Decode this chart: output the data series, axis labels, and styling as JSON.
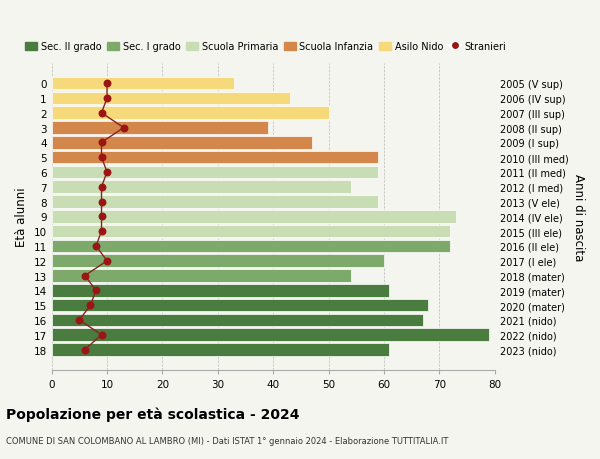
{
  "ages": [
    0,
    1,
    2,
    3,
    4,
    5,
    6,
    7,
    8,
    9,
    10,
    11,
    12,
    13,
    14,
    15,
    16,
    17,
    18
  ],
  "years": [
    "2023 (nido)",
    "2022 (nido)",
    "2021 (nido)",
    "2020 (mater)",
    "2019 (mater)",
    "2018 (mater)",
    "2017 (I ele)",
    "2016 (II ele)",
    "2015 (III ele)",
    "2014 (IV ele)",
    "2013 (V ele)",
    "2012 (I med)",
    "2011 (II med)",
    "2010 (III med)",
    "2009 (I sup)",
    "2008 (II sup)",
    "2007 (III sup)",
    "2006 (IV sup)",
    "2005 (V sup)"
  ],
  "bar_values": [
    33,
    43,
    50,
    39,
    47,
    59,
    59,
    54,
    59,
    73,
    72,
    72,
    60,
    54,
    61,
    68,
    67,
    79,
    61
  ],
  "bar_colors": [
    "#f5d97a",
    "#f5d97a",
    "#f5d97a",
    "#d4874a",
    "#d4874a",
    "#d4874a",
    "#c8ddb4",
    "#c8ddb4",
    "#c8ddb4",
    "#c8ddb4",
    "#c8ddb4",
    "#7daa6b",
    "#7daa6b",
    "#7daa6b",
    "#4a7c3f",
    "#4a7c3f",
    "#4a7c3f",
    "#4a7c3f",
    "#4a7c3f"
  ],
  "stranieri": [
    10,
    10,
    9,
    13,
    9,
    9,
    10,
    9,
    9,
    9,
    9,
    8,
    10,
    6,
    8,
    7,
    5,
    9,
    6
  ],
  "legend_labels": [
    "Sec. II grado",
    "Sec. I grado",
    "Scuola Primaria",
    "Scuola Infanzia",
    "Asilo Nido",
    "Stranieri"
  ],
  "legend_colors": [
    "#4a7c3f",
    "#7daa6b",
    "#c8ddb4",
    "#d4874a",
    "#f5d97a",
    "#9b1515"
  ],
  "ylabel": "Età alunni",
  "ylabel2": "Anni di nascita",
  "xlim": [
    0,
    80
  ],
  "xticks": [
    0,
    10,
    20,
    30,
    40,
    50,
    60,
    70,
    80
  ],
  "title": "Popolazione per età scolastica - 2024",
  "subtitle": "COMUNE DI SAN COLOMBANO AL LAMBRO (MI) - Dati ISTAT 1° gennaio 2024 - Elaborazione TUTTITALIA.IT",
  "bg_color": "#f5f5f0",
  "bar_height": 0.85,
  "stranieri_color": "#9b1515",
  "stranieri_line_color": "#8b2020"
}
